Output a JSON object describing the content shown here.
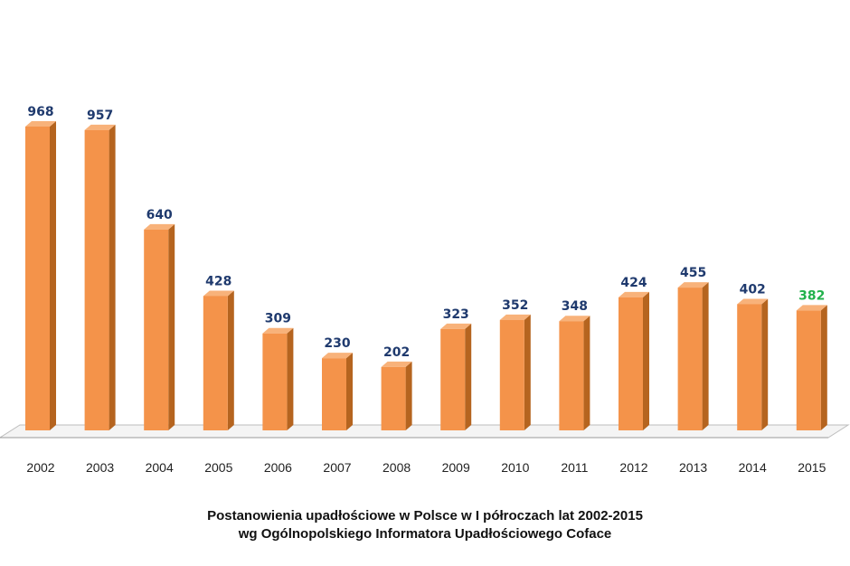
{
  "chart_data": {
    "type": "bar",
    "categories": [
      "2002",
      "2003",
      "2004",
      "2005",
      "2006",
      "2007",
      "2008",
      "2009",
      "2010",
      "2011",
      "2012",
      "2013",
      "2014",
      "2015"
    ],
    "values": [
      968,
      957,
      640,
      428,
      309,
      230,
      202,
      323,
      352,
      348,
      424,
      455,
      402,
      382
    ],
    "title": "Postanowienia  upadłościowe w Polsce w I półroczach lat 2002-2015",
    "subtitle": "wg Ogólnopolskiego Informatora Upadłościowego Coface",
    "ylim": [
      0,
      968
    ],
    "grid": false,
    "bar_color": "#F4934A",
    "bar_side_color": "#B5641F",
    "bar_top_color": "#F8B27A",
    "value_label_color": "#1F3A6E",
    "highlight_label_color": "#22B14C",
    "highlight_category": "2015"
  }
}
